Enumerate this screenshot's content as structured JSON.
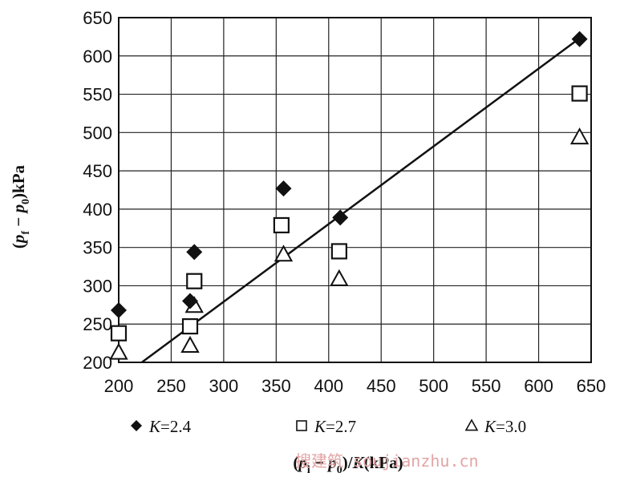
{
  "chart_data": {
    "type": "scatter",
    "xlabel": "(p_l − p_0)/K(kPa)",
    "ylabel": "(p_f − p_0)kPa",
    "xlim": [
      200,
      650
    ],
    "ylim": [
      200,
      650
    ],
    "xticks": [
      200,
      250,
      300,
      350,
      400,
      450,
      500,
      550,
      600,
      650
    ],
    "yticks": [
      200,
      250,
      300,
      350,
      400,
      450,
      500,
      550,
      600,
      650
    ],
    "grid": true,
    "legend_position": "bottom",
    "series": [
      {
        "name": "K=2.4",
        "marker": "filled-diamond",
        "points": [
          [
            200,
            268
          ],
          [
            268,
            280
          ],
          [
            272,
            344
          ],
          [
            357,
            427
          ],
          [
            411,
            389
          ],
          [
            639,
            622
          ]
        ]
      },
      {
        "name": "K=2.7",
        "marker": "open-square",
        "points": [
          [
            200,
            238
          ],
          [
            268,
            247
          ],
          [
            272,
            306
          ],
          [
            355,
            379
          ],
          [
            410,
            345
          ],
          [
            639,
            551
          ]
        ]
      },
      {
        "name": "K=3.0",
        "marker": "open-triangle",
        "points": [
          [
            200,
            213
          ],
          [
            268,
            222
          ],
          [
            272,
            274
          ],
          [
            357,
            341
          ],
          [
            410,
            309
          ],
          [
            639,
            494
          ]
        ]
      }
    ],
    "trendline": {
      "x": [
        222,
        636
      ],
      "y": [
        200,
        620
      ]
    }
  },
  "watermark": "搜建筑 soujianzhu.cn"
}
